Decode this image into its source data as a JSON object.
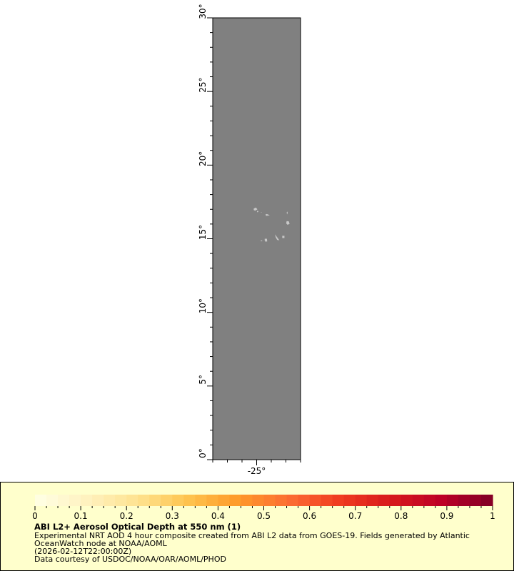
{
  "map": {
    "lat_range": [
      0,
      30
    ],
    "lon_range": [
      -28,
      -22
    ],
    "lat_labels": [
      "0°",
      "5°",
      "10°",
      "15°",
      "20°",
      "25°",
      "30°"
    ],
    "lat_values": [
      0,
      5,
      10,
      15,
      20,
      25,
      30
    ],
    "lon_labels": [
      "-25°"
    ],
    "lon_values": [
      -25
    ],
    "no_data_color": "#808080",
    "land_color": "#c8c8c8"
  },
  "legend": {
    "colorbar": {
      "min": 0,
      "max": 1,
      "tick_labels": [
        "0",
        "0.1",
        "0.2",
        "0.3",
        "0.4",
        "0.5",
        "0.6",
        "0.7",
        "0.8",
        "0.9",
        "1"
      ],
      "palette": [
        "#ffffe5",
        "#fff2c0",
        "#fee391",
        "#fec44f",
        "#fe9929",
        "#fc6d33",
        "#f03b20",
        "#d7191c",
        "#bd0026",
        "#800026"
      ]
    },
    "title": "ABI L2+ Aerosol Optical Depth at 550 nm (1)",
    "line1": "Experimental NRT AOD 4 hour composite created from ABI L2 data from GOES-19. Fields generated by Atlantic",
    "line2": "OceanWatch node at NOAA/AOML",
    "line3": "(2026-02-12T22:00:00Z)",
    "line4": "Data courtesy of USDOC/NOAA/OAR/AOML/PHOD"
  }
}
